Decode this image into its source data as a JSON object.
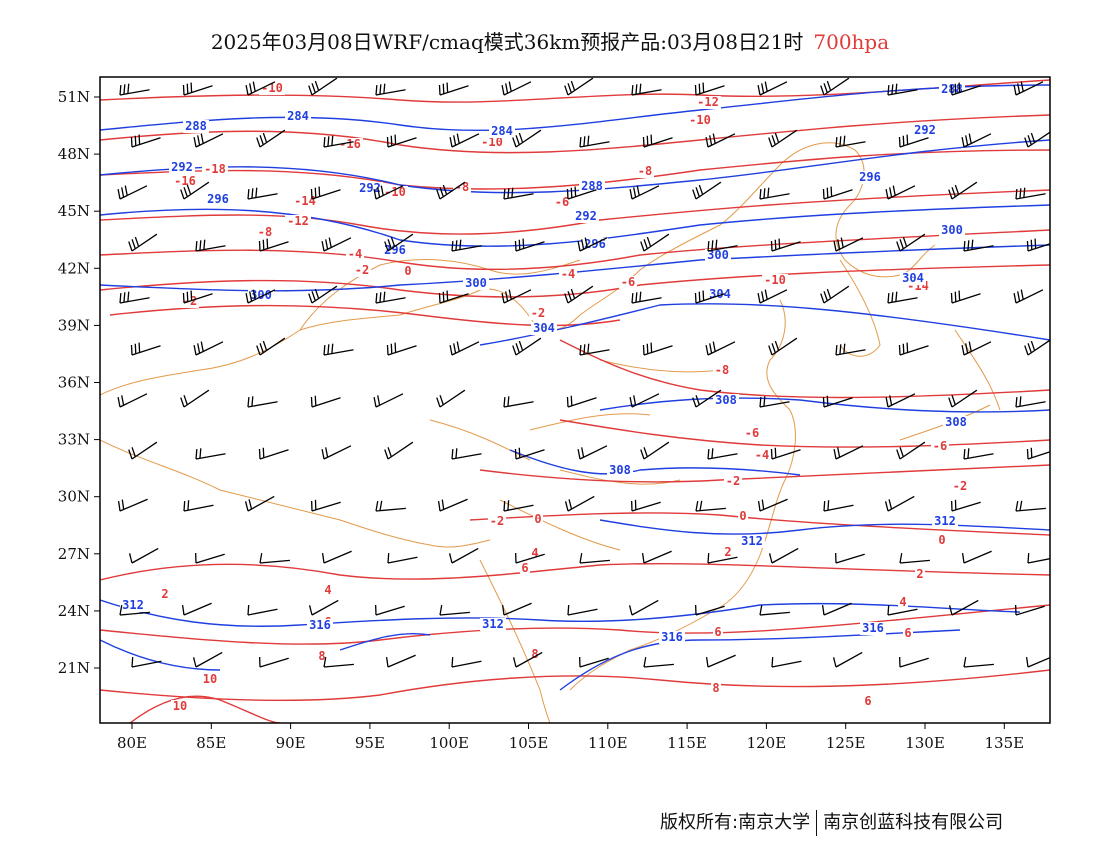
{
  "title": {
    "main": "2025年03月08日WRF/cmaq模式36km预报产品:03月08日21时",
    "level": "700hpa",
    "level_color": "#e03a3a"
  },
  "footer": {
    "left": "版权所有:南京大学",
    "right": "南京创蓝科技有限公司"
  },
  "axes": {
    "lat_labels": [
      "51N",
      "48N",
      "45N",
      "42N",
      "39N",
      "36N",
      "33N",
      "30N",
      "27N",
      "24N",
      "21N"
    ],
    "lon_labels": [
      "80E",
      "85E",
      "90E",
      "95E",
      "100E",
      "105E",
      "110E",
      "115E",
      "120E",
      "125E",
      "130E",
      "135E"
    ]
  },
  "colors": {
    "height_contour": "#1f3fe0",
    "temperature_contour": "#e03a3a",
    "boundary": "#e39a4a",
    "wind_barb": "#000000"
  },
  "height_labels": [
    "288",
    "284",
    "292",
    "296",
    "300",
    "304",
    "308",
    "312",
    "316"
  ],
  "temp_labels": [
    "-16",
    "-14",
    "-12",
    "-10",
    "-8",
    "-6",
    "-4",
    "-2",
    "0",
    "2",
    "4",
    "6",
    "8",
    "10"
  ]
}
